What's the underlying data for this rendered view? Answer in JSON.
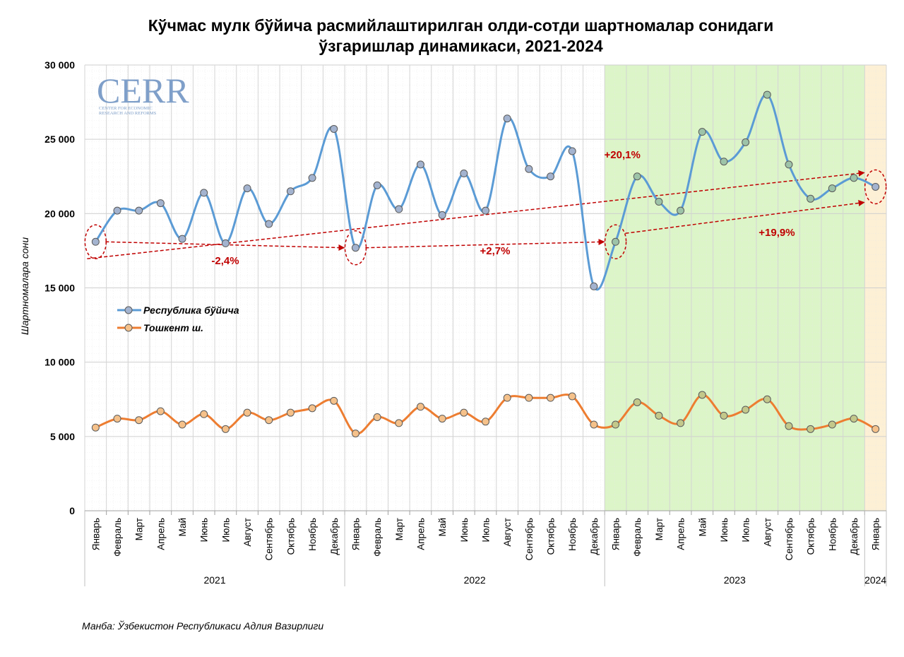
{
  "title": {
    "line1": "Кўчмас мулк бўйича расмийлаштирилган олди-сотди шартномалар сонидаги",
    "line2": "ўзгаришлар динамикаси, 2021-2024"
  },
  "source": "Манба: Ўзбекистон Республикаси Адлия Вазирлиги",
  "logo": {
    "text": "CERR",
    "sub1": "CENTER FOR ECONOMIC",
    "sub2": "RESEARCH AND REFORMS"
  },
  "chart_data": {
    "type": "line",
    "title": "Кўчмас мулк бўйича расмийлаштирилган олди-сотди шартномалар сонидаги ўзгаришлар динамикаси, 2021-2024",
    "ylabel": "Шартномалара сони",
    "xlabel": "",
    "ylim": [
      0,
      30000
    ],
    "yticks": [
      0,
      5000,
      10000,
      15000,
      20000,
      25000,
      30000
    ],
    "ytick_labels": [
      "0",
      "5 000",
      "10 000",
      "15 000",
      "20 000",
      "25 000",
      "30 000"
    ],
    "grid": true,
    "legend_position": "left-middle",
    "categories": [
      "Январь",
      "Февраль",
      "Март",
      "Апрель",
      "Май",
      "Июнь",
      "Июль",
      "Август",
      "Сентябрь",
      "Октябрь",
      "Ноябрь",
      "Декабрь",
      "Январь",
      "Февраль",
      "Март",
      "Апрель",
      "Май",
      "Июнь",
      "Июль",
      "Август",
      "Сентябрь",
      "Октябрь",
      "Ноябрь",
      "Декабрь",
      "Январь",
      "Февраль",
      "Март",
      "Апрель",
      "Май",
      "Июнь",
      "Июль",
      "Август",
      "Сентябрь",
      "Октябрь",
      "Ноябрь",
      "Декабрь",
      "Январь"
    ],
    "year_groups": [
      {
        "label": "2021",
        "start": 0,
        "end": 11
      },
      {
        "label": "2022",
        "start": 12,
        "end": 23
      },
      {
        "label": "2023",
        "start": 24,
        "end": 35
      },
      {
        "label": "2024",
        "start": 36,
        "end": 36
      }
    ],
    "series": [
      {
        "name": "Республика бўйича",
        "color": "#5b9bd5",
        "values": [
          18100,
          20200,
          20200,
          20700,
          18300,
          21400,
          18000,
          21700,
          19300,
          21500,
          22400,
          25700,
          17700,
          21900,
          20300,
          23300,
          19900,
          22700,
          20200,
          26400,
          23000,
          22500,
          24200,
          15100,
          18100,
          22500,
          20800,
          20200,
          25500,
          23500,
          24800,
          28000,
          23300,
          21000,
          21700,
          22400,
          21800
        ]
      },
      {
        "name": "Тошкент ш.",
        "color": "#ed7d31",
        "values": [
          5600,
          6200,
          6100,
          6700,
          5800,
          6500,
          5500,
          6600,
          6100,
          6600,
          6900,
          7400,
          5200,
          6300,
          5900,
          7000,
          6200,
          6600,
          6000,
          7600,
          7600,
          7600,
          7700,
          5800,
          5800,
          7300,
          6400,
          5900,
          7800,
          6400,
          6800,
          7500,
          5700,
          5500,
          5800,
          6200,
          5500
        ]
      }
    ],
    "highlight_colors": {
      "year_2023": "#dcf5c8",
      "year_2024": "#fdf0d5"
    },
    "annotations": [
      {
        "text": "-2,4%",
        "from": 0,
        "to": 12
      },
      {
        "text": "+2,7%",
        "from": 12,
        "to": 24
      },
      {
        "text": "+19,9%",
        "from": 24,
        "to": 36
      },
      {
        "text": "+20,1%",
        "from": 0,
        "to": 36
      }
    ]
  }
}
